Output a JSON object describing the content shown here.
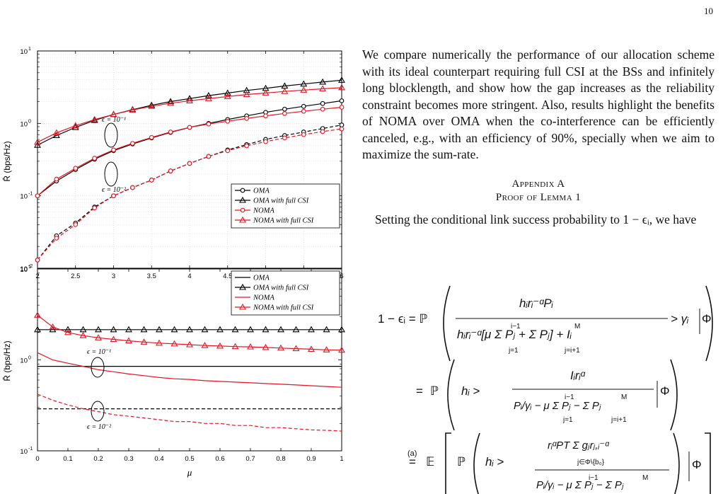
{
  "page": {
    "number": "10"
  },
  "colors": {
    "oma": "#000000",
    "noma": "#e8141e",
    "grid": "#d0d0d0"
  },
  "figure_top": {
    "ylabel": "R̄ (bps/Hz)",
    "xticks": [
      "2",
      "2.5",
      "3",
      "3.5",
      "4",
      "4.5",
      "5",
      "5.5",
      "6"
    ],
    "yticks": [
      "10",
      "10",
      "10",
      "10"
    ],
    "yexps": [
      "-2",
      "-1",
      "0",
      "1"
    ],
    "annotation_upper": "ϵ = 10⁻¹",
    "annotation_lower": "ϵ = 10⁻²",
    "legend": [
      "OMA",
      "OMA with full CSI",
      "NOMA",
      "NOMA with full CSI"
    ]
  },
  "figure_bottom": {
    "ylabel": "R̄ (bps/Hz)",
    "xlabel": "μ",
    "xticks": [
      "0",
      "0.1",
      "0.2",
      "0.3",
      "0.4",
      "0.5",
      "0.6",
      "0.7",
      "0.8",
      "0.9",
      "1"
    ],
    "yticks": [
      "10",
      "10",
      "10"
    ],
    "yexps": [
      "-1",
      "0",
      "1"
    ],
    "annotation_upper": "ϵ = 10⁻¹",
    "annotation_lower": "ϵ = 10⁻²",
    "legend": [
      "OMA",
      "OMA with full CSI",
      "NOMA",
      "NOMA with full CSI"
    ]
  },
  "chart_data": [
    {
      "type": "line",
      "ylabel": "R̄ (bps/Hz)",
      "xlim": [
        2,
        6
      ],
      "ylim": [
        0.01,
        10
      ],
      "yscale": "log",
      "grid": true,
      "legend_position": "bottom-right",
      "x": [
        2,
        2.25,
        2.5,
        2.75,
        3,
        3.25,
        3.5,
        3.75,
        4,
        4.25,
        4.5,
        4.75,
        5,
        5.25,
        5.5,
        5.75,
        6
      ],
      "series": [
        {
          "name": "OMA",
          "style": "solid",
          "group": "ϵ = 10⁻¹",
          "values": [
            0.1,
            0.16,
            0.23,
            0.32,
            0.42,
            0.52,
            0.63,
            0.75,
            0.88,
            1.0,
            1.13,
            1.27,
            1.42,
            1.57,
            1.72,
            1.88,
            2.05
          ]
        },
        {
          "name": "OMA with full CSI",
          "style": "solid",
          "group": "ϵ = 10⁻¹",
          "values": [
            0.5,
            0.68,
            0.88,
            1.1,
            1.33,
            1.55,
            1.78,
            2.0,
            2.2,
            2.42,
            2.62,
            2.85,
            3.05,
            3.28,
            3.5,
            3.72,
            3.95
          ]
        },
        {
          "name": "NOMA",
          "style": "solid",
          "group": "ϵ = 10⁻¹",
          "values": [
            0.1,
            0.17,
            0.24,
            0.33,
            0.43,
            0.53,
            0.64,
            0.76,
            0.88,
            0.98,
            1.07,
            1.17,
            1.27,
            1.37,
            1.47,
            1.57,
            1.67
          ]
        },
        {
          "name": "NOMA with full CSI",
          "style": "solid",
          "group": "ϵ = 10⁻¹",
          "values": [
            0.55,
            0.74,
            0.93,
            1.13,
            1.33,
            1.53,
            1.72,
            1.9,
            2.05,
            2.2,
            2.35,
            2.5,
            2.63,
            2.76,
            2.88,
            3.0,
            3.12
          ]
        },
        {
          "name": "OMA",
          "style": "dashed",
          "group": "ϵ = 10⁻²",
          "values": [
            0.013,
            0.028,
            0.042,
            0.07,
            0.1,
            0.13,
            0.165,
            0.22,
            0.28,
            0.35,
            0.43,
            0.51,
            0.6,
            0.68,
            0.76,
            0.85,
            0.95
          ]
        },
        {
          "name": "NOMA",
          "style": "dashed",
          "group": "ϵ = 10⁻²",
          "values": [
            0.013,
            0.026,
            0.04,
            0.068,
            0.1,
            0.13,
            0.165,
            0.22,
            0.28,
            0.35,
            0.42,
            0.49,
            0.56,
            0.63,
            0.7,
            0.77,
            0.84
          ]
        }
      ]
    },
    {
      "type": "line",
      "xlabel": "μ",
      "ylabel": "R̄ (bps/Hz)",
      "xlim": [
        0,
        1
      ],
      "ylim": [
        0.1,
        10
      ],
      "yscale": "log",
      "grid": false,
      "legend_position": "top-right",
      "x": [
        0,
        0.05,
        0.1,
        0.15,
        0.2,
        0.25,
        0.3,
        0.35,
        0.4,
        0.45,
        0.5,
        0.55,
        0.6,
        0.65,
        0.7,
        0.75,
        0.8,
        0.85,
        0.9,
        0.95,
        1
      ],
      "series": [
        {
          "name": "OMA",
          "style": "solid",
          "group": "ϵ = 10⁻¹",
          "values": [
            0.85,
            0.85,
            0.85,
            0.85,
            0.85,
            0.85,
            0.85,
            0.85,
            0.85,
            0.85,
            0.85,
            0.85,
            0.85,
            0.85,
            0.85,
            0.85,
            0.85,
            0.85,
            0.85,
            0.85,
            0.85
          ]
        },
        {
          "name": "OMA with full CSI",
          "style": "solid",
          "group": "ϵ = 10⁻¹",
          "values": [
            2.15,
            2.15,
            2.15,
            2.15,
            2.15,
            2.15,
            2.15,
            2.15,
            2.15,
            2.15,
            2.15,
            2.15,
            2.15,
            2.15,
            2.15,
            2.15,
            2.15,
            2.15,
            2.15,
            2.15,
            2.15
          ]
        },
        {
          "name": "NOMA",
          "style": "solid",
          "group": "ϵ = 10⁻¹",
          "values": [
            1.2,
            1.0,
            0.92,
            0.85,
            0.78,
            0.74,
            0.7,
            0.67,
            0.64,
            0.62,
            0.61,
            0.59,
            0.58,
            0.57,
            0.56,
            0.55,
            0.54,
            0.53,
            0.52,
            0.51,
            0.5
          ]
        },
        {
          "name": "NOMA with full CSI",
          "style": "solid",
          "group": "ϵ = 10⁻¹",
          "values": [
            3.1,
            2.3,
            2.0,
            1.85,
            1.75,
            1.68,
            1.62,
            1.57,
            1.53,
            1.5,
            1.47,
            1.44,
            1.42,
            1.4,
            1.39,
            1.37,
            1.35,
            1.33,
            1.31,
            1.29,
            1.28
          ]
        },
        {
          "name": "OMA",
          "style": "dashed",
          "group": "ϵ = 10⁻²",
          "values": [
            0.29,
            0.29,
            0.29,
            0.29,
            0.29,
            0.29,
            0.29,
            0.29,
            0.29,
            0.29,
            0.29,
            0.29,
            0.29,
            0.29,
            0.29,
            0.29,
            0.29,
            0.29,
            0.29,
            0.29,
            0.29
          ]
        },
        {
          "name": "NOMA",
          "style": "dashed",
          "group": "ϵ = 10⁻²",
          "values": [
            0.42,
            0.36,
            0.32,
            0.29,
            0.27,
            0.25,
            0.24,
            0.23,
            0.22,
            0.21,
            0.21,
            0.2,
            0.2,
            0.19,
            0.19,
            0.18,
            0.18,
            0.175,
            0.17,
            0.168,
            0.165
          ]
        }
      ]
    }
  ],
  "text": {
    "paragraph": "We compare numerically the performance of our allocation scheme with its ideal counterpart requiring full CSI at the BSs and infinitely long blocklength, and show how the gap increases as the reliability constraint becomes more stringent. Also, results highlight the benefits of NOMA over OMA when the co-interference can be efficiently canceled, e.g., with an efficiency of 90%, specially when we aim to maximize the sum-rate.",
    "appendix_title": "Appendix A",
    "appendix_subtitle": "Proof of Lemma 1",
    "lemma_intro": "Setting the conditional link success probability to 1 − ϵᵢ, we have"
  },
  "equations": {
    "lhs": "1 − ϵᵢ = ℙ",
    "eq_sign_a": "=",
    "eq_sign_b": "=",
    "a_label": "(a)",
    "p_sym": "ℙ",
    "e_sym": "𝔼",
    "numer1": "hᵢrᵢ⁻ᵅPᵢ",
    "gamma": "> γᵢ",
    "phi": "Φ",
    "denom1": "hᵢrᵢ⁻ᵅ[μ Σ Pⱼ + Σ Pⱼ] + Iᵢ",
    "hi_gt": "hᵢ >",
    "numer2": "Iᵢrᵢᵅ",
    "denom2": "Pᵢ/γᵢ − μ Σ Pⱼ − Σ Pⱼ",
    "numer3": "rᵢᵅPT Σ gⱼrⱼ,ᵢ⁻ᵅ",
    "sum_lower": "j∈Φ\\{b₀}",
    "sum_j1": "j=1",
    "sum_ji1": "j=i+1",
    "sum_i1": "i−1",
    "sum_M": "M"
  }
}
